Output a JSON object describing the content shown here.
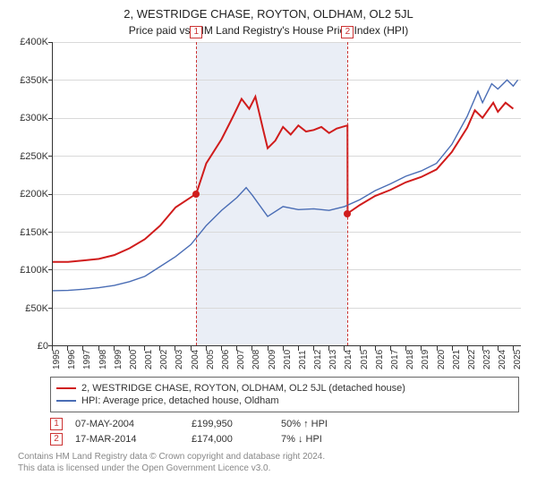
{
  "title_main": "2, WESTRIDGE CHASE, ROYTON, OLDHAM, OL2 5JL",
  "title_sub": "Price paid vs. HM Land Registry's House Price Index (HPI)",
  "chart": {
    "type": "line",
    "y_min": 0,
    "y_max": 400000,
    "y_tick_step": 50000,
    "y_labels": [
      "£0",
      "£50K",
      "£100K",
      "£150K",
      "£200K",
      "£250K",
      "£300K",
      "£350K",
      "£400K"
    ],
    "x_min": 1995,
    "x_max": 2025.5,
    "x_labels": [
      "1995",
      "1996",
      "1997",
      "1998",
      "1999",
      "2000",
      "2001",
      "2002",
      "2003",
      "2004",
      "2005",
      "2006",
      "2007",
      "2008",
      "2009",
      "2010",
      "2011",
      "2012",
      "2013",
      "2014",
      "2015",
      "2016",
      "2017",
      "2018",
      "2019",
      "2020",
      "2021",
      "2022",
      "2023",
      "2024",
      "2025"
    ],
    "band": {
      "start": 2004.35,
      "end": 2014.21,
      "color": "#eaeef6"
    },
    "gridline_color": "#d9d9d9",
    "axis_color": "#333333",
    "background_color": "#ffffff",
    "series": [
      {
        "name": "2, WESTRIDGE CHASE, ROYTON, OLDHAM, OL2 5JL (detached house)",
        "color": "#d01c1c",
        "width": 2,
        "points": [
          [
            1995,
            110000
          ],
          [
            1996,
            110000
          ],
          [
            1997,
            112000
          ],
          [
            1998,
            114000
          ],
          [
            1999,
            119000
          ],
          [
            2000,
            128000
          ],
          [
            2001,
            140000
          ],
          [
            2002,
            158000
          ],
          [
            2003,
            182000
          ],
          [
            2004.35,
            199950
          ],
          [
            2005,
            240000
          ],
          [
            2006,
            272000
          ],
          [
            2006.7,
            300000
          ],
          [
            2007.3,
            325000
          ],
          [
            2007.8,
            312000
          ],
          [
            2008.2,
            328000
          ],
          [
            2008.7,
            285000
          ],
          [
            2009,
            260000
          ],
          [
            2009.5,
            270000
          ],
          [
            2010,
            288000
          ],
          [
            2010.5,
            278000
          ],
          [
            2011,
            290000
          ],
          [
            2011.5,
            282000
          ],
          [
            2012,
            284000
          ],
          [
            2012.5,
            288000
          ],
          [
            2013,
            280000
          ],
          [
            2013.5,
            286000
          ],
          [
            2014.2,
            290000
          ],
          [
            2014.21,
            174000
          ],
          [
            2015,
            185000
          ],
          [
            2016,
            197000
          ],
          [
            2017,
            205000
          ],
          [
            2018,
            215000
          ],
          [
            2019,
            222000
          ],
          [
            2020,
            232000
          ],
          [
            2021,
            255000
          ],
          [
            2022,
            287000
          ],
          [
            2022.5,
            310000
          ],
          [
            2023,
            300000
          ],
          [
            2023.7,
            320000
          ],
          [
            2024,
            308000
          ],
          [
            2024.5,
            320000
          ],
          [
            2025,
            312000
          ]
        ]
      },
      {
        "name": "HPI: Average price, detached house, Oldham",
        "color": "#4a6db5",
        "width": 1.4,
        "points": [
          [
            1995,
            72000
          ],
          [
            1996,
            72500
          ],
          [
            1997,
            74000
          ],
          [
            1998,
            76000
          ],
          [
            1999,
            79000
          ],
          [
            2000,
            84000
          ],
          [
            2001,
            91000
          ],
          [
            2002,
            104000
          ],
          [
            2003,
            117000
          ],
          [
            2004,
            133000
          ],
          [
            2005,
            158000
          ],
          [
            2006,
            178000
          ],
          [
            2007,
            195000
          ],
          [
            2007.6,
            208000
          ],
          [
            2008,
            198000
          ],
          [
            2009,
            170000
          ],
          [
            2010,
            183000
          ],
          [
            2011,
            179000
          ],
          [
            2012,
            180000
          ],
          [
            2013,
            178000
          ],
          [
            2014,
            183000
          ],
          [
            2015,
            192000
          ],
          [
            2016,
            204000
          ],
          [
            2017,
            213000
          ],
          [
            2018,
            223000
          ],
          [
            2019,
            230000
          ],
          [
            2020,
            240000
          ],
          [
            2021,
            265000
          ],
          [
            2022,
            302000
          ],
          [
            2022.7,
            335000
          ],
          [
            2023,
            320000
          ],
          [
            2023.6,
            345000
          ],
          [
            2024,
            338000
          ],
          [
            2024.6,
            350000
          ],
          [
            2025,
            342000
          ],
          [
            2025.3,
            350000
          ]
        ]
      }
    ],
    "event_markers": [
      {
        "n": "1",
        "x": 2004.35,
        "dot_y": 199950,
        "dot_color": "#d01c1c"
      },
      {
        "n": "2",
        "x": 2014.21,
        "dot_y": 174000,
        "dot_color": "#d01c1c"
      }
    ],
    "label_fontsize": 11
  },
  "legend": {
    "items": [
      {
        "color": "#d01c1c",
        "label": "2, WESTRIDGE CHASE, ROYTON, OLDHAM, OL2 5JL (detached house)"
      },
      {
        "color": "#4a6db5",
        "label": "HPI: Average price, detached house, Oldham"
      }
    ]
  },
  "transactions": [
    {
      "n": "1",
      "date": "07-MAY-2004",
      "price": "£199,950",
      "delta": "50% ↑ HPI"
    },
    {
      "n": "2",
      "date": "17-MAR-2014",
      "price": "£174,000",
      "delta": "7% ↓ HPI"
    }
  ],
  "footer_line1": "Contains HM Land Registry data © Crown copyright and database right 2024.",
  "footer_line2": "This data is licensed under the Open Government Licence v3.0."
}
